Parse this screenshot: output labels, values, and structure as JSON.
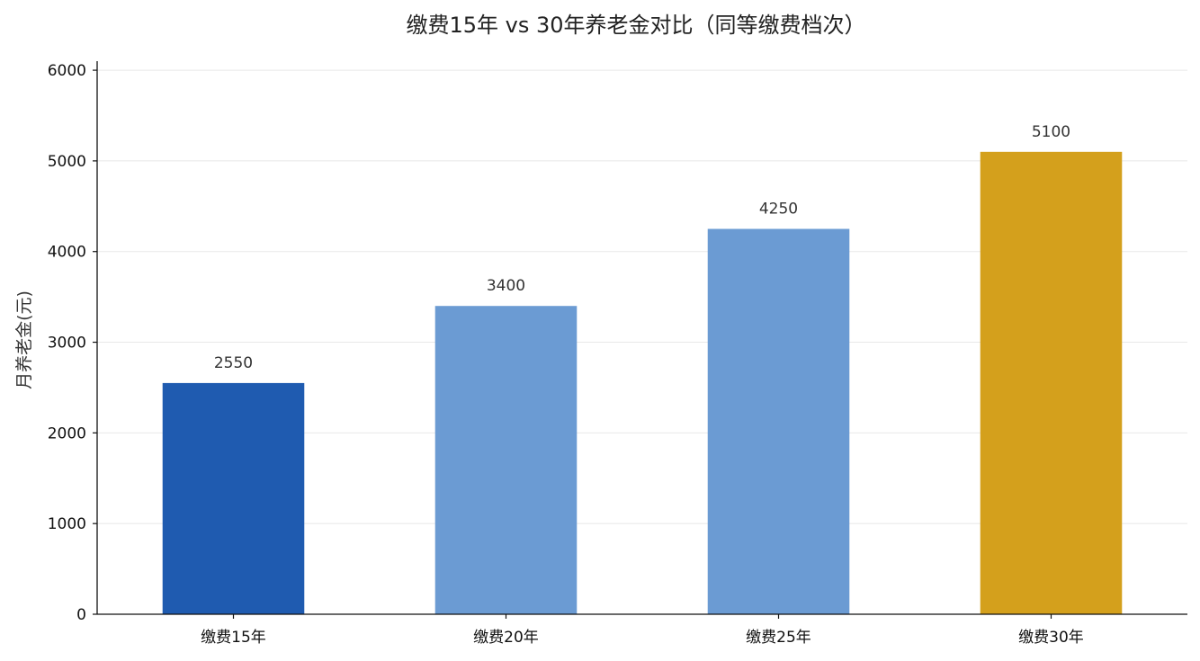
{
  "chart_data": {
    "type": "bar",
    "title": "缴费15年 vs 30年养老金对比（同等缴费档次）",
    "xlabel": "",
    "ylabel": "月养老金(元)",
    "categories": [
      "缴费15年",
      "缴费20年",
      "缴费25年",
      "缴费30年"
    ],
    "values": [
      2550,
      3400,
      4250,
      5100
    ],
    "value_labels": [
      "2550",
      "3400",
      "4250",
      "5100"
    ],
    "colors": [
      "#1f5bb0",
      "#6b9bd3",
      "#6b9bd3",
      "#d4a01c"
    ],
    "ylim": [
      0,
      6100
    ],
    "yticks": [
      0,
      1000,
      2000,
      3000,
      4000,
      5000,
      6000
    ],
    "grid": true,
    "legend": false
  }
}
